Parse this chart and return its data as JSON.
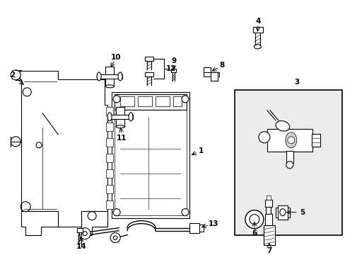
{
  "bg_color": "#ffffff",
  "line_color": "#000000",
  "light_gray": "#d0d0d0",
  "box_fill": "#e8e8e8",
  "figsize": [
    4.89,
    3.6
  ],
  "dpi": 100
}
